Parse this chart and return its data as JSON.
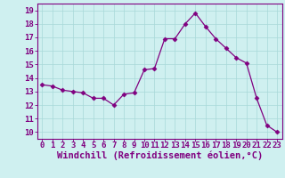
{
  "x": [
    0,
    1,
    2,
    3,
    4,
    5,
    6,
    7,
    8,
    9,
    10,
    11,
    12,
    13,
    14,
    15,
    16,
    17,
    18,
    19,
    20,
    21,
    22,
    23
  ],
  "y": [
    13.5,
    13.4,
    13.1,
    13.0,
    12.9,
    12.5,
    12.5,
    12.0,
    12.8,
    12.9,
    14.6,
    14.7,
    16.9,
    16.9,
    18.0,
    18.8,
    17.8,
    16.9,
    16.2,
    15.5,
    15.1,
    12.5,
    10.5,
    10.0
  ],
  "line_color": "#800080",
  "marker": "D",
  "marker_size": 2.5,
  "bg_color": "#cff0f0",
  "grid_color": "#a8d8d8",
  "xlabel": "Windchill (Refroidissement éolien,°C)",
  "xlim": [
    -0.5,
    23.5
  ],
  "ylim": [
    9.5,
    19.5
  ],
  "yticks": [
    10,
    11,
    12,
    13,
    14,
    15,
    16,
    17,
    18,
    19
  ],
  "xticks": [
    0,
    1,
    2,
    3,
    4,
    5,
    6,
    7,
    8,
    9,
    10,
    11,
    12,
    13,
    14,
    15,
    16,
    17,
    18,
    19,
    20,
    21,
    22,
    23
  ],
  "tick_color": "#800080",
  "label_color": "#800080",
  "spine_color": "#800080",
  "tick_fontsize": 6.5,
  "xlabel_fontsize": 7.5
}
